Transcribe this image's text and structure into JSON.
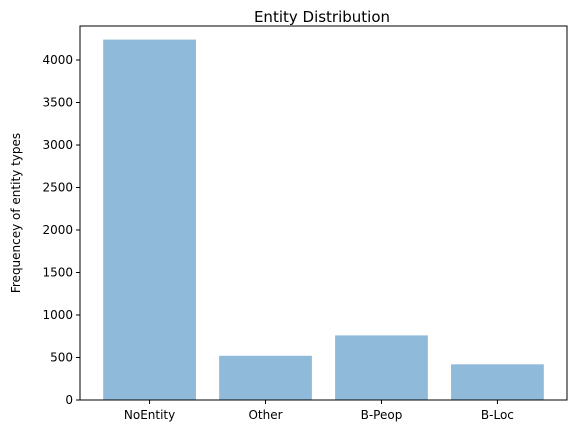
{
  "chart_data": {
    "type": "bar",
    "title": "Entity Distribution",
    "xlabel": "",
    "ylabel": "Frequencey of entity types",
    "categories": [
      "NoEntity",
      "Other",
      "B-Peop",
      "B-Loc"
    ],
    "values": [
      4240,
      520,
      760,
      420
    ],
    "ylim": [
      0,
      4400
    ],
    "yticks": [
      0,
      500,
      1000,
      1500,
      2000,
      2500,
      3000,
      3500,
      4000
    ],
    "bar_color": "#8fbada",
    "grid": false,
    "legend": "none"
  }
}
